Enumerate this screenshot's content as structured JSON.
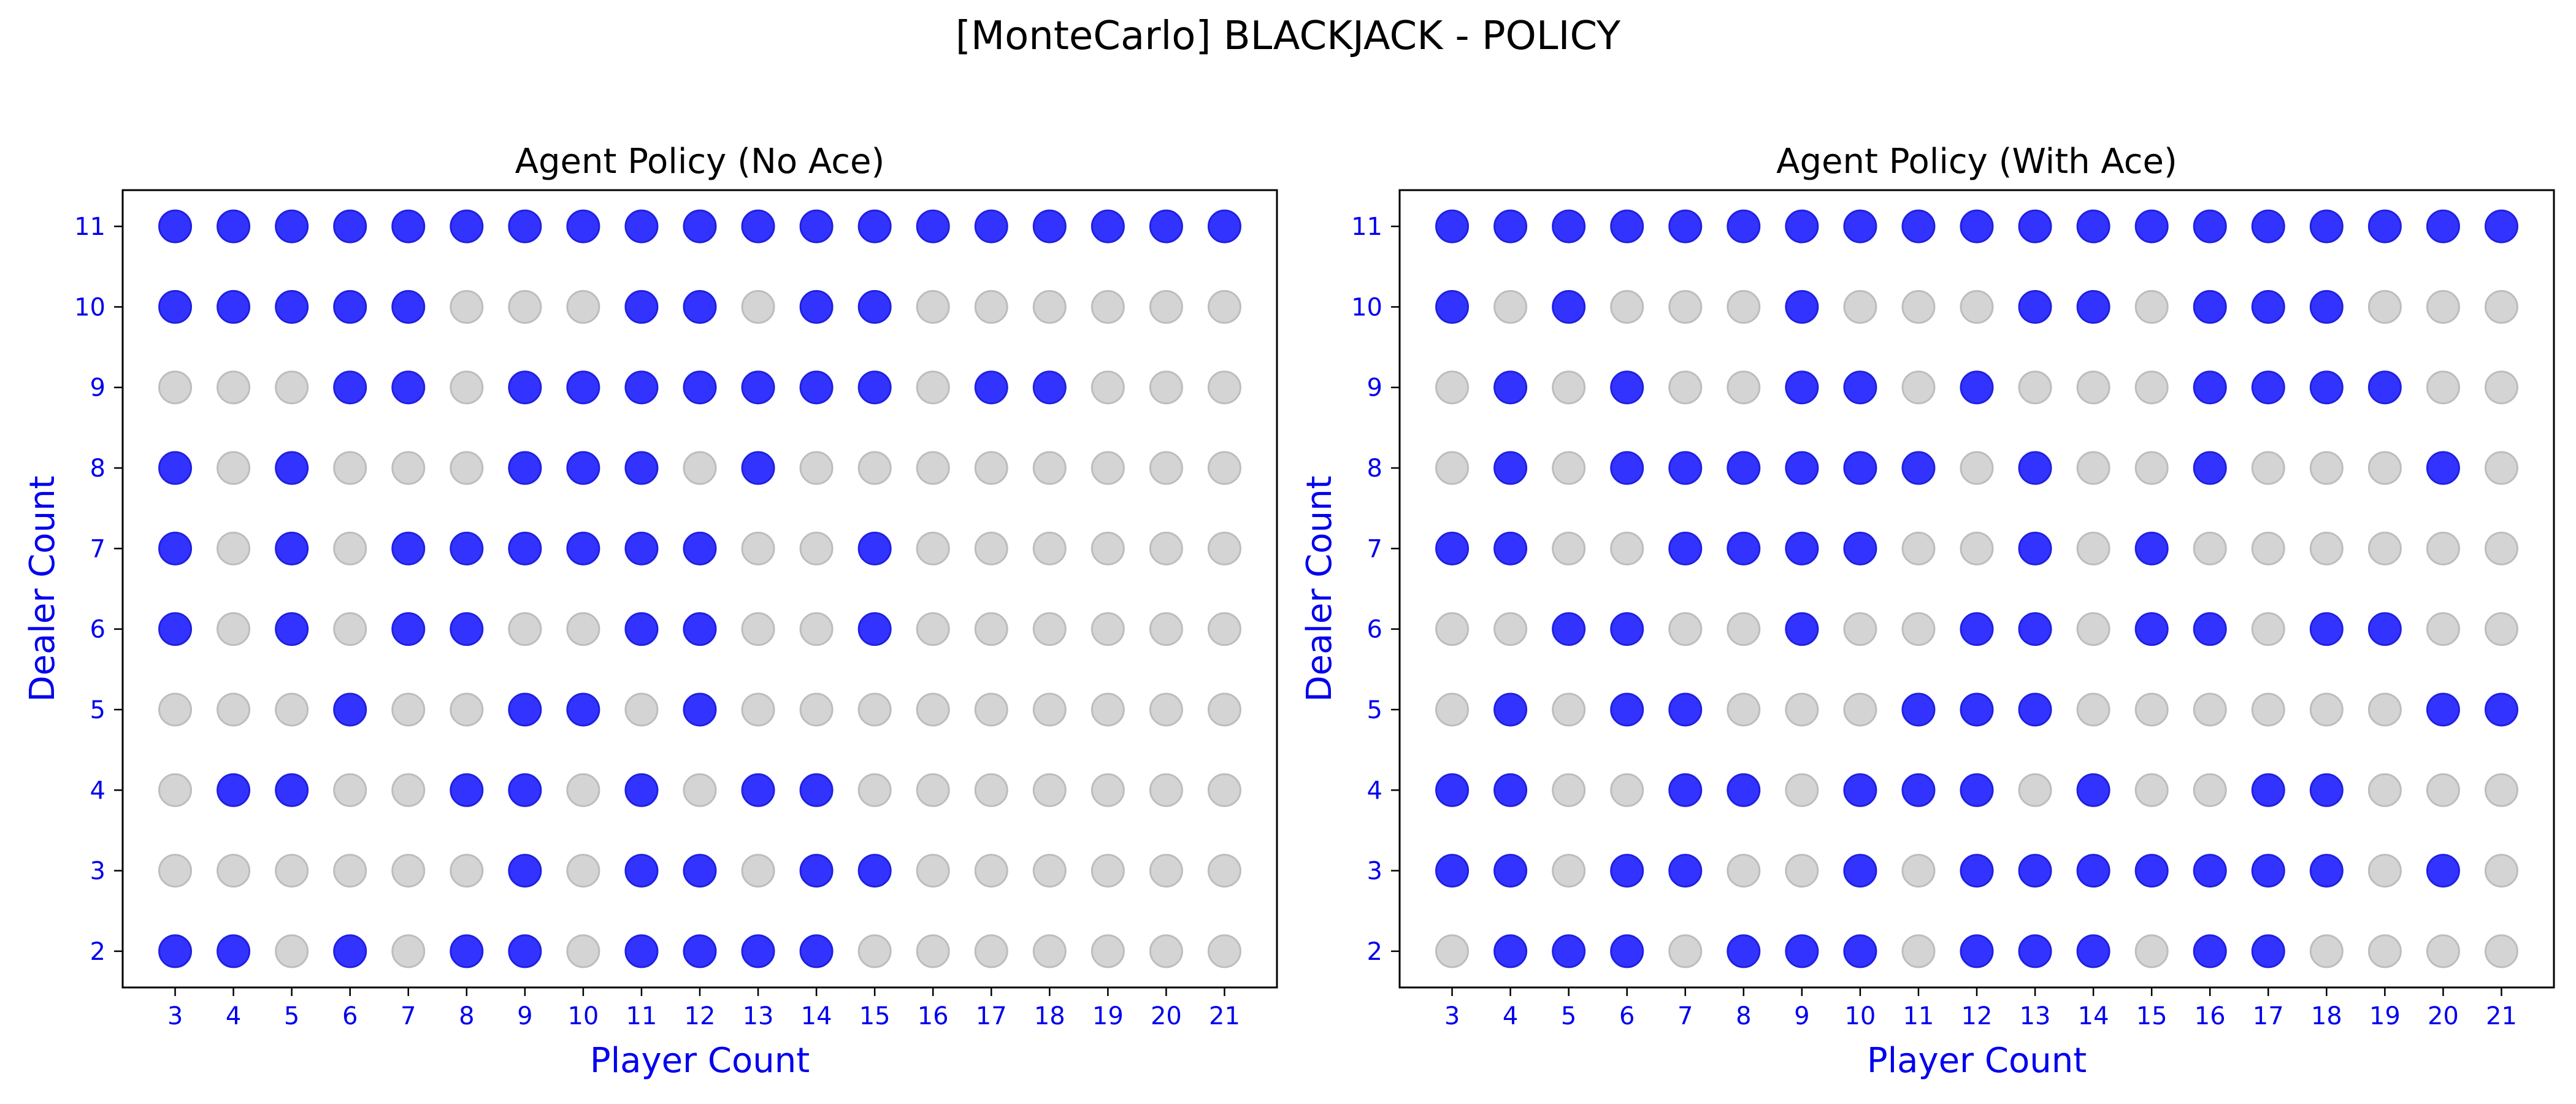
{
  "figure_title": "[MonteCarlo] BLACKJACK - POLICY",
  "colors": {
    "stick_dot": "#3333ff",
    "stick_edge": "#2020e0",
    "hit_dot": "#d4d4d4",
    "hit_edge": "#bdbdbd",
    "axis_text": "#0000ee"
  },
  "chart_data": [
    {
      "type": "scatter",
      "title": "Agent Policy (No Ace)",
      "xlabel": "Player Count",
      "ylabel": "Dealer Count",
      "x_ticks": [
        3,
        4,
        5,
        6,
        7,
        8,
        9,
        10,
        11,
        12,
        13,
        14,
        15,
        16,
        17,
        18,
        19,
        20,
        21
      ],
      "y_ticks": [
        2,
        3,
        4,
        5,
        6,
        7,
        8,
        9,
        10,
        11
      ],
      "xlim": [
        2.1,
        21.9
      ],
      "ylim": [
        1.55,
        11.45
      ],
      "legend": "none",
      "grid": false,
      "series": [
        {
          "dealer": 11,
          "policy": [
            1,
            1,
            1,
            1,
            1,
            1,
            1,
            1,
            1,
            1,
            1,
            1,
            1,
            1,
            1,
            1,
            1,
            1,
            1
          ]
        },
        {
          "dealer": 10,
          "policy": [
            1,
            1,
            1,
            1,
            1,
            0,
            0,
            0,
            1,
            1,
            0,
            1,
            1,
            0,
            0,
            0,
            0,
            0,
            0
          ]
        },
        {
          "dealer": 9,
          "policy": [
            0,
            0,
            0,
            1,
            1,
            0,
            1,
            1,
            1,
            1,
            1,
            1,
            1,
            0,
            1,
            1,
            0,
            0,
            0
          ]
        },
        {
          "dealer": 8,
          "policy": [
            1,
            0,
            1,
            0,
            0,
            0,
            1,
            1,
            1,
            0,
            1,
            0,
            0,
            0,
            0,
            0,
            0,
            0,
            0
          ]
        },
        {
          "dealer": 7,
          "policy": [
            1,
            0,
            1,
            0,
            1,
            1,
            1,
            1,
            1,
            1,
            0,
            0,
            1,
            0,
            0,
            0,
            0,
            0,
            0
          ]
        },
        {
          "dealer": 6,
          "policy": [
            1,
            0,
            1,
            0,
            1,
            1,
            0,
            0,
            1,
            1,
            0,
            0,
            1,
            0,
            0,
            0,
            0,
            0,
            0
          ]
        },
        {
          "dealer": 5,
          "policy": [
            0,
            0,
            0,
            1,
            0,
            0,
            1,
            1,
            0,
            1,
            0,
            0,
            0,
            0,
            0,
            0,
            0,
            0,
            0
          ]
        },
        {
          "dealer": 4,
          "policy": [
            0,
            1,
            1,
            0,
            0,
            1,
            1,
            0,
            1,
            0,
            1,
            1,
            0,
            0,
            0,
            0,
            0,
            0,
            0
          ]
        },
        {
          "dealer": 3,
          "policy": [
            0,
            0,
            0,
            0,
            0,
            0,
            1,
            0,
            1,
            1,
            0,
            1,
            1,
            0,
            0,
            0,
            0,
            0,
            0
          ]
        },
        {
          "dealer": 2,
          "policy": [
            1,
            1,
            0,
            1,
            0,
            1,
            1,
            0,
            1,
            1,
            1,
            1,
            0,
            0,
            0,
            0,
            0,
            0,
            0
          ]
        }
      ]
    },
    {
      "type": "scatter",
      "title": "Agent Policy (With Ace)",
      "xlabel": "Player Count",
      "ylabel": "Dealer Count",
      "x_ticks": [
        3,
        4,
        5,
        6,
        7,
        8,
        9,
        10,
        11,
        12,
        13,
        14,
        15,
        16,
        17,
        18,
        19,
        20,
        21
      ],
      "y_ticks": [
        2,
        3,
        4,
        5,
        6,
        7,
        8,
        9,
        10,
        11
      ],
      "xlim": [
        2.1,
        21.9
      ],
      "ylim": [
        1.55,
        11.45
      ],
      "legend": "none",
      "grid": false,
      "series": [
        {
          "dealer": 11,
          "policy": [
            1,
            1,
            1,
            1,
            1,
            1,
            1,
            1,
            1,
            1,
            1,
            1,
            1,
            1,
            1,
            1,
            1,
            1,
            1
          ]
        },
        {
          "dealer": 10,
          "policy": [
            1,
            0,
            1,
            0,
            0,
            0,
            1,
            0,
            0,
            0,
            1,
            1,
            0,
            1,
            1,
            1,
            0,
            0,
            0
          ]
        },
        {
          "dealer": 9,
          "policy": [
            0,
            1,
            0,
            1,
            0,
            0,
            1,
            1,
            0,
            1,
            0,
            0,
            0,
            1,
            1,
            1,
            1,
            0,
            0
          ]
        },
        {
          "dealer": 8,
          "policy": [
            0,
            1,
            0,
            1,
            1,
            1,
            1,
            1,
            1,
            0,
            1,
            0,
            0,
            1,
            0,
            0,
            0,
            1,
            0
          ]
        },
        {
          "dealer": 7,
          "policy": [
            1,
            1,
            0,
            0,
            1,
            1,
            1,
            1,
            0,
            0,
            1,
            0,
            1,
            0,
            0,
            0,
            0,
            0,
            0
          ]
        },
        {
          "dealer": 6,
          "policy": [
            0,
            0,
            1,
            1,
            0,
            0,
            1,
            0,
            0,
            1,
            1,
            0,
            1,
            1,
            0,
            1,
            1,
            0,
            0
          ]
        },
        {
          "dealer": 5,
          "policy": [
            0,
            1,
            0,
            1,
            1,
            0,
            0,
            0,
            1,
            1,
            1,
            0,
            0,
            0,
            0,
            0,
            0,
            1,
            1
          ]
        },
        {
          "dealer": 4,
          "policy": [
            1,
            1,
            0,
            0,
            1,
            1,
            0,
            1,
            1,
            1,
            0,
            1,
            0,
            0,
            1,
            1,
            0,
            0,
            0
          ]
        },
        {
          "dealer": 3,
          "policy": [
            1,
            1,
            0,
            1,
            1,
            0,
            0,
            1,
            0,
            1,
            1,
            1,
            1,
            1,
            1,
            1,
            0,
            1,
            0
          ]
        },
        {
          "dealer": 2,
          "policy": [
            0,
            1,
            1,
            1,
            0,
            1,
            1,
            1,
            0,
            1,
            1,
            1,
            0,
            1,
            1,
            0,
            0,
            0,
            0
          ]
        }
      ]
    }
  ]
}
